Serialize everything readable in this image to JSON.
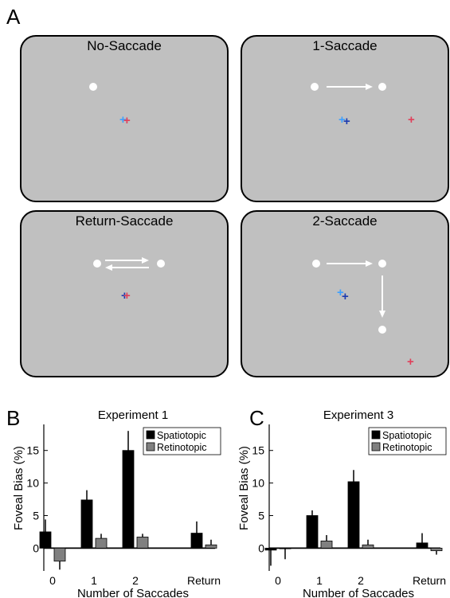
{
  "panel_labels": {
    "a": "A",
    "b": "B",
    "c": "C"
  },
  "screens": [
    {
      "title": "No-Saccade"
    },
    {
      "title": "1-Saccade"
    },
    {
      "title": "Return-Saccade"
    },
    {
      "title": "2-Saccade"
    }
  ],
  "glyphs": {
    "cross": "+"
  },
  "colors": {
    "screen_bg": "#c0c0c0",
    "light_blue_cross": "#3da0ff",
    "dark_blue_cross": "#1d3bb0",
    "red_cross": "#e0405a",
    "spatiotopic": "#000000",
    "retinotopic": "#808080"
  },
  "chart_data": [
    {
      "type": "bar",
      "title": "Experiment 1",
      "xlabel": "Number of Saccades",
      "ylabel": "Foveal Bias (%)",
      "categories": [
        "0",
        "1",
        "2",
        "Return"
      ],
      "ylim": [
        -3.5,
        19
      ],
      "yticks": [
        0,
        5,
        10,
        15
      ],
      "legend_position": "top-right",
      "series": [
        {
          "name": "Spatiotopic",
          "values": [
            2.5,
            7.4,
            15.0,
            2.3
          ],
          "errors": [
            1.9,
            1.5,
            3.0,
            1.8
          ]
        },
        {
          "name": "Retinotopic",
          "values": [
            -2.0,
            1.5,
            1.7,
            0.5
          ],
          "errors": [
            1.3,
            0.7,
            0.5,
            0.8
          ]
        }
      ]
    },
    {
      "type": "bar",
      "title": "Experiment 3",
      "xlabel": "Number of Saccades",
      "ylabel": "Foveal Bias (%)",
      "categories": [
        "0",
        "1",
        "2",
        "Return"
      ],
      "ylim": [
        -3.5,
        19
      ],
      "yticks": [
        0,
        5,
        10,
        15
      ],
      "legend_position": "top-right",
      "series": [
        {
          "name": "Spatiotopic",
          "values": [
            -0.3,
            5.0,
            10.2,
            0.8
          ],
          "errors": [
            2.4,
            0.8,
            1.8,
            1.5
          ]
        },
        {
          "name": "Retinotopic",
          "values": [
            -0.1,
            1.1,
            0.5,
            -0.4
          ],
          "errors": [
            1.6,
            0.9,
            0.8,
            0.6
          ]
        }
      ]
    }
  ]
}
